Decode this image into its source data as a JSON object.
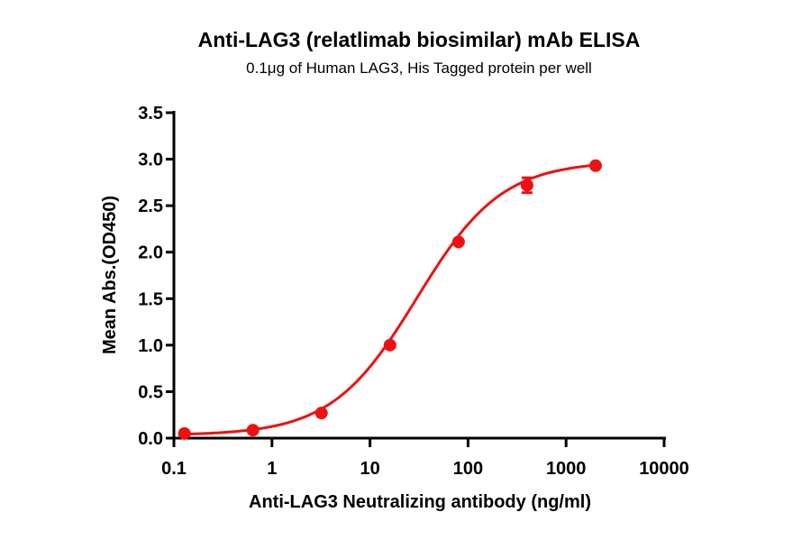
{
  "chart_data": {
    "type": "scatter",
    "title": "Anti-LAG3 (relatlimab biosimilar) mAb ELISA",
    "subtitle": "0.1μg of Human LAG3, His Tagged protein per well",
    "xlabel": "Anti-LAG3 Neutralizing antibody (ng/ml)",
    "ylabel": "Mean Abs.(OD450)",
    "xscale": "log",
    "xlim": [
      0.1,
      10000
    ],
    "ylim": [
      0,
      3.5
    ],
    "xticks": [
      "0.1",
      "1",
      "10",
      "100",
      "1000",
      "10000"
    ],
    "yticks": [
      "0.0",
      "0.5",
      "1.0",
      "1.5",
      "2.0",
      "2.5",
      "3.0",
      "3.5"
    ],
    "grid": false,
    "fit": "sigmoidal curve",
    "color": "#ee1111",
    "series": [
      {
        "x": [
          0.128,
          0.64,
          3.2,
          16,
          80,
          400,
          2000
        ],
        "y": [
          0.05,
          0.085,
          0.27,
          1.0,
          2.11,
          2.72,
          2.93
        ],
        "error": [
          0,
          0,
          0,
          0,
          0,
          0.08,
          0
        ]
      }
    ]
  }
}
